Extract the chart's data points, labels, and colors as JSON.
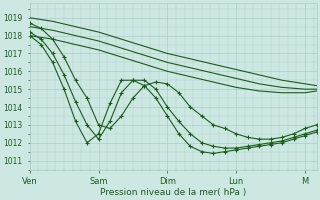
{
  "title": "Pression niveau de la mer( hPa )",
  "bg_color": "#cde8e2",
  "grid_color": "#a8cfc8",
  "line_color": "#1a5c1a",
  "marker_color": "#1a5c1a",
  "ylim": [
    1010.5,
    1019.8
  ],
  "yticks": [
    1011,
    1012,
    1013,
    1014,
    1015,
    1016,
    1017,
    1018,
    1019
  ],
  "xtick_labels": [
    "Ven",
    "Sam",
    "Dim",
    "Lun",
    "M"
  ],
  "xtick_positions": [
    0,
    24,
    48,
    72,
    96
  ],
  "xlim": [
    0,
    100
  ],
  "series": [
    {
      "x": [
        0,
        8,
        16,
        24,
        32,
        40,
        48,
        56,
        64,
        72,
        80,
        88,
        96,
        100
      ],
      "y": [
        1019.0,
        1018.8,
        1018.5,
        1018.2,
        1017.8,
        1017.4,
        1017.0,
        1016.7,
        1016.4,
        1016.1,
        1015.8,
        1015.5,
        1015.3,
        1015.2
      ],
      "marker": null,
      "lw": 0.8
    },
    {
      "x": [
        0,
        8,
        16,
        24,
        32,
        40,
        48,
        56,
        64,
        72,
        80,
        88,
        96,
        100
      ],
      "y": [
        1018.5,
        1018.3,
        1018.0,
        1017.7,
        1017.3,
        1016.9,
        1016.5,
        1016.2,
        1015.9,
        1015.6,
        1015.3,
        1015.1,
        1015.0,
        1015.0
      ],
      "marker": null,
      "lw": 0.8
    },
    {
      "x": [
        0,
        8,
        16,
        24,
        32,
        40,
        48,
        56,
        64,
        72,
        80,
        88,
        96,
        100
      ],
      "y": [
        1018.0,
        1017.8,
        1017.5,
        1017.2,
        1016.8,
        1016.4,
        1016.0,
        1015.7,
        1015.4,
        1015.1,
        1014.9,
        1014.8,
        1014.8,
        1014.9
      ],
      "marker": null,
      "lw": 0.8
    },
    {
      "x": [
        0,
        4,
        8,
        12,
        16,
        20,
        24,
        28,
        32,
        36,
        40,
        44,
        48,
        52,
        56,
        60,
        64,
        68,
        72,
        76,
        80,
        84,
        88,
        92,
        96,
        100
      ],
      "y": [
        1018.7,
        1018.4,
        1017.8,
        1016.8,
        1015.5,
        1014.5,
        1013.0,
        1012.8,
        1013.5,
        1014.5,
        1015.2,
        1015.4,
        1015.3,
        1014.8,
        1014.0,
        1013.5,
        1013.0,
        1012.8,
        1012.5,
        1012.3,
        1012.2,
        1012.2,
        1012.3,
        1012.5,
        1012.8,
        1013.0
      ],
      "marker": "+",
      "lw": 0.8
    },
    {
      "x": [
        0,
        4,
        8,
        12,
        16,
        20,
        24,
        28,
        32,
        36,
        40,
        44,
        48,
        52,
        56,
        60,
        64,
        68,
        72,
        76,
        80,
        84,
        88,
        92,
        96,
        100
      ],
      "y": [
        1018.2,
        1017.8,
        1017.0,
        1015.8,
        1014.3,
        1013.0,
        1012.2,
        1013.2,
        1014.8,
        1015.5,
        1015.5,
        1015.0,
        1014.0,
        1013.2,
        1012.5,
        1012.0,
        1011.8,
        1011.7,
        1011.7,
        1011.8,
        1011.9,
        1012.0,
        1012.1,
        1012.3,
        1012.5,
        1012.7
      ],
      "marker": "+",
      "lw": 0.8
    },
    {
      "x": [
        0,
        4,
        8,
        12,
        16,
        20,
        24,
        28,
        32,
        36,
        40,
        44,
        48,
        52,
        56,
        60,
        64,
        68,
        72,
        76,
        80,
        84,
        88,
        92,
        96,
        100
      ],
      "y": [
        1018.0,
        1017.5,
        1016.5,
        1015.0,
        1013.2,
        1012.0,
        1012.5,
        1014.2,
        1015.5,
        1015.5,
        1015.2,
        1014.5,
        1013.5,
        1012.5,
        1011.8,
        1011.5,
        1011.4,
        1011.5,
        1011.6,
        1011.7,
        1011.8,
        1011.9,
        1012.0,
        1012.2,
        1012.4,
        1012.6
      ],
      "marker": "+",
      "lw": 0.8
    }
  ]
}
